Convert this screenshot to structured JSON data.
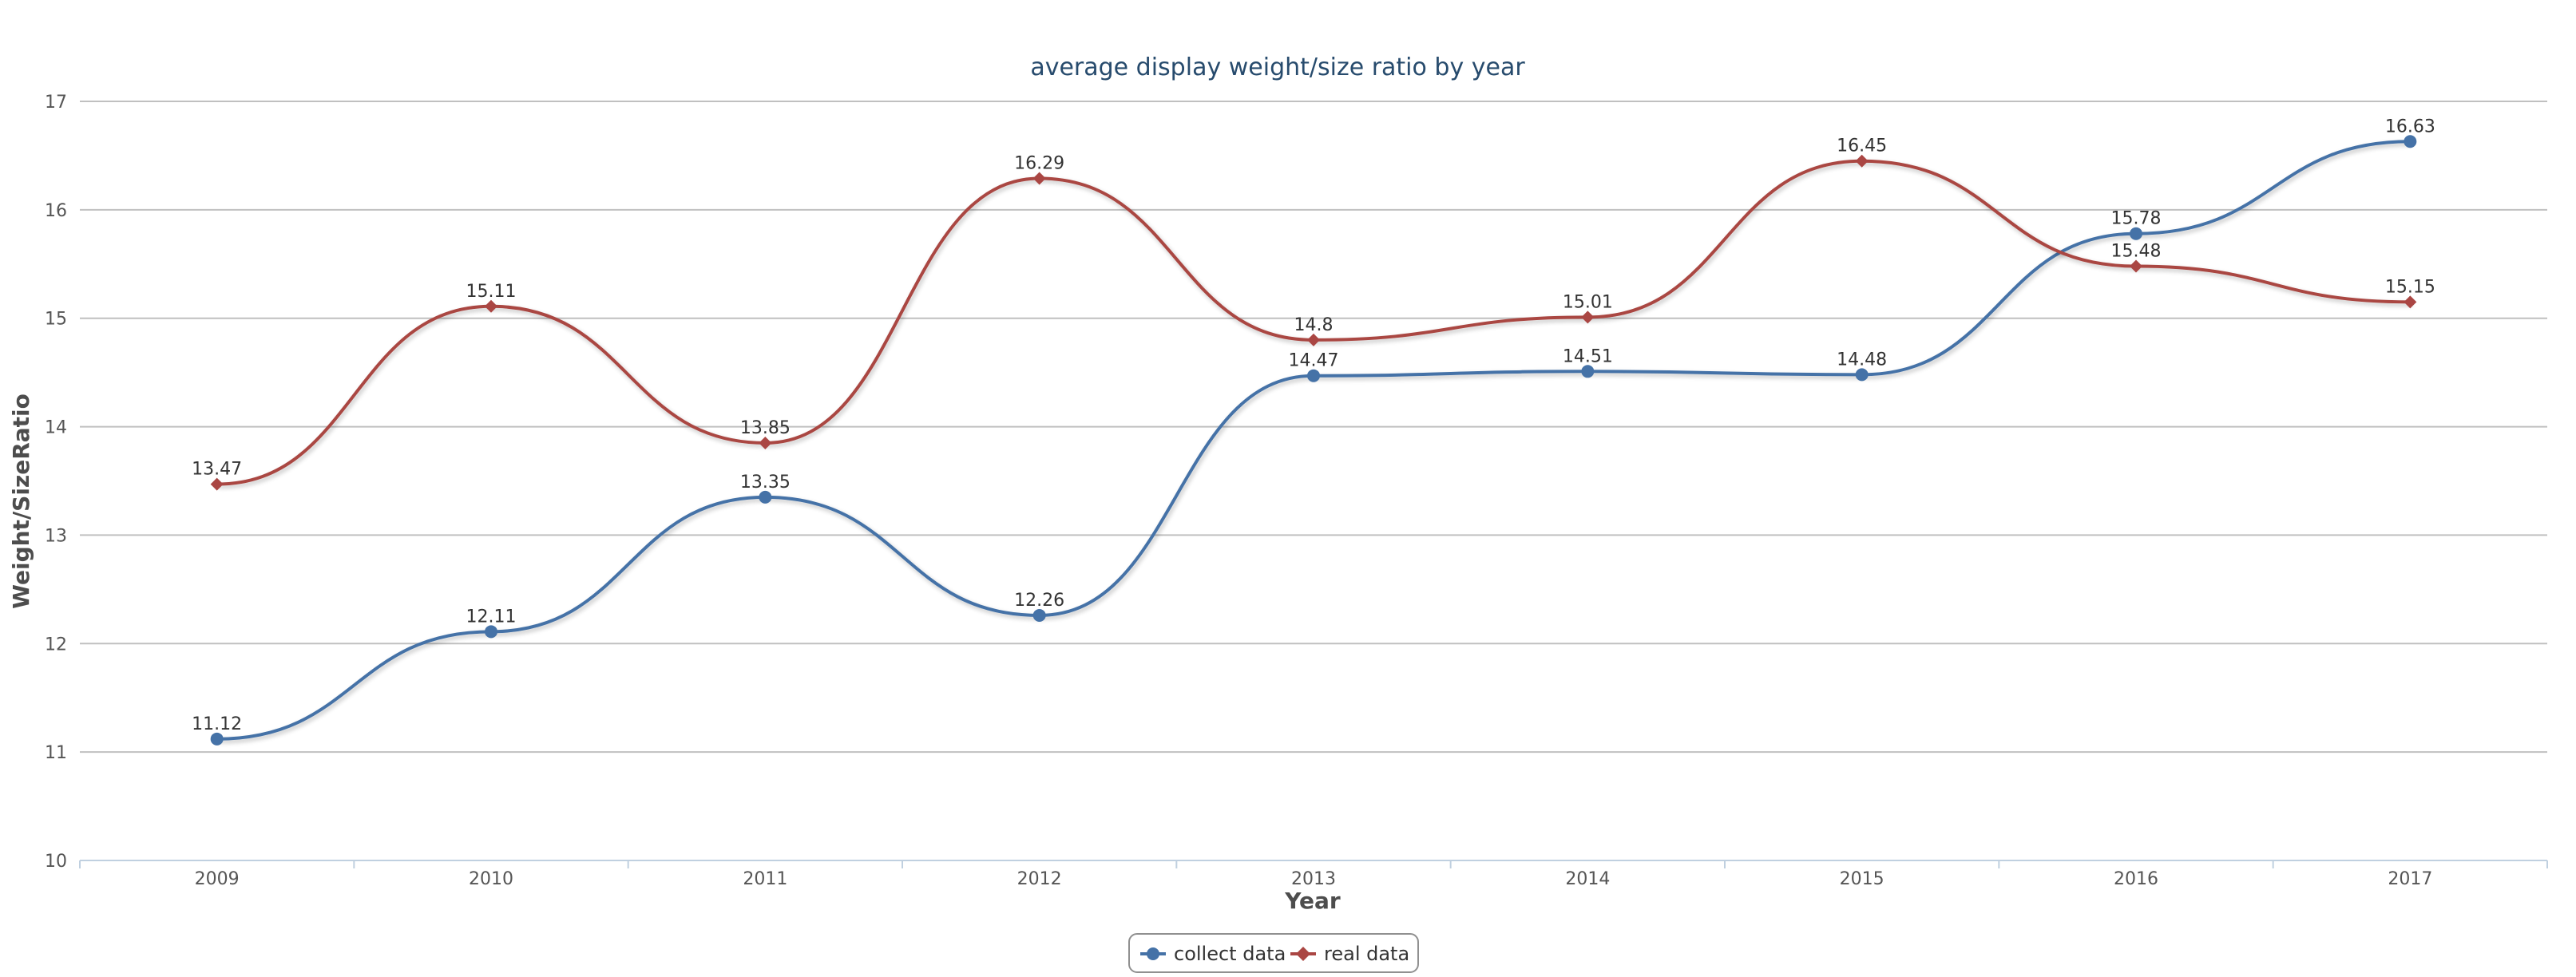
{
  "chart_data": {
    "type": "line",
    "title": "average display weight/size ratio by year",
    "xlabel": "Year",
    "ylabel": "Weight/SizeRatio",
    "categories": [
      "2009",
      "2010",
      "2011",
      "2012",
      "2013",
      "2014",
      "2015",
      "2016",
      "2017"
    ],
    "ylim": [
      10,
      17
    ],
    "yticks": [
      10,
      11,
      12,
      13,
      14,
      15,
      16,
      17
    ],
    "grid": true,
    "legend_position": "bottom-center",
    "series": [
      {
        "name": "collect data",
        "values": [
          11.12,
          12.11,
          13.35,
          12.26,
          14.47,
          14.51,
          14.48,
          15.78,
          16.63
        ],
        "labels": [
          "11.12",
          "12.11",
          "13.35",
          "12.26",
          "14.47",
          "14.51",
          "14.48",
          "15.78",
          "16.63"
        ],
        "color": "#4572a7",
        "marker": "circle"
      },
      {
        "name": "real data",
        "values": [
          13.47,
          15.11,
          13.85,
          16.29,
          14.8,
          15.01,
          16.45,
          15.48,
          15.15
        ],
        "labels": [
          "13.47",
          "15.11",
          "13.85",
          "16.29",
          "14.8",
          "15.01",
          "16.45",
          "15.48",
          "15.15"
        ],
        "color": "#aa4643",
        "marker": "diamond"
      }
    ]
  }
}
